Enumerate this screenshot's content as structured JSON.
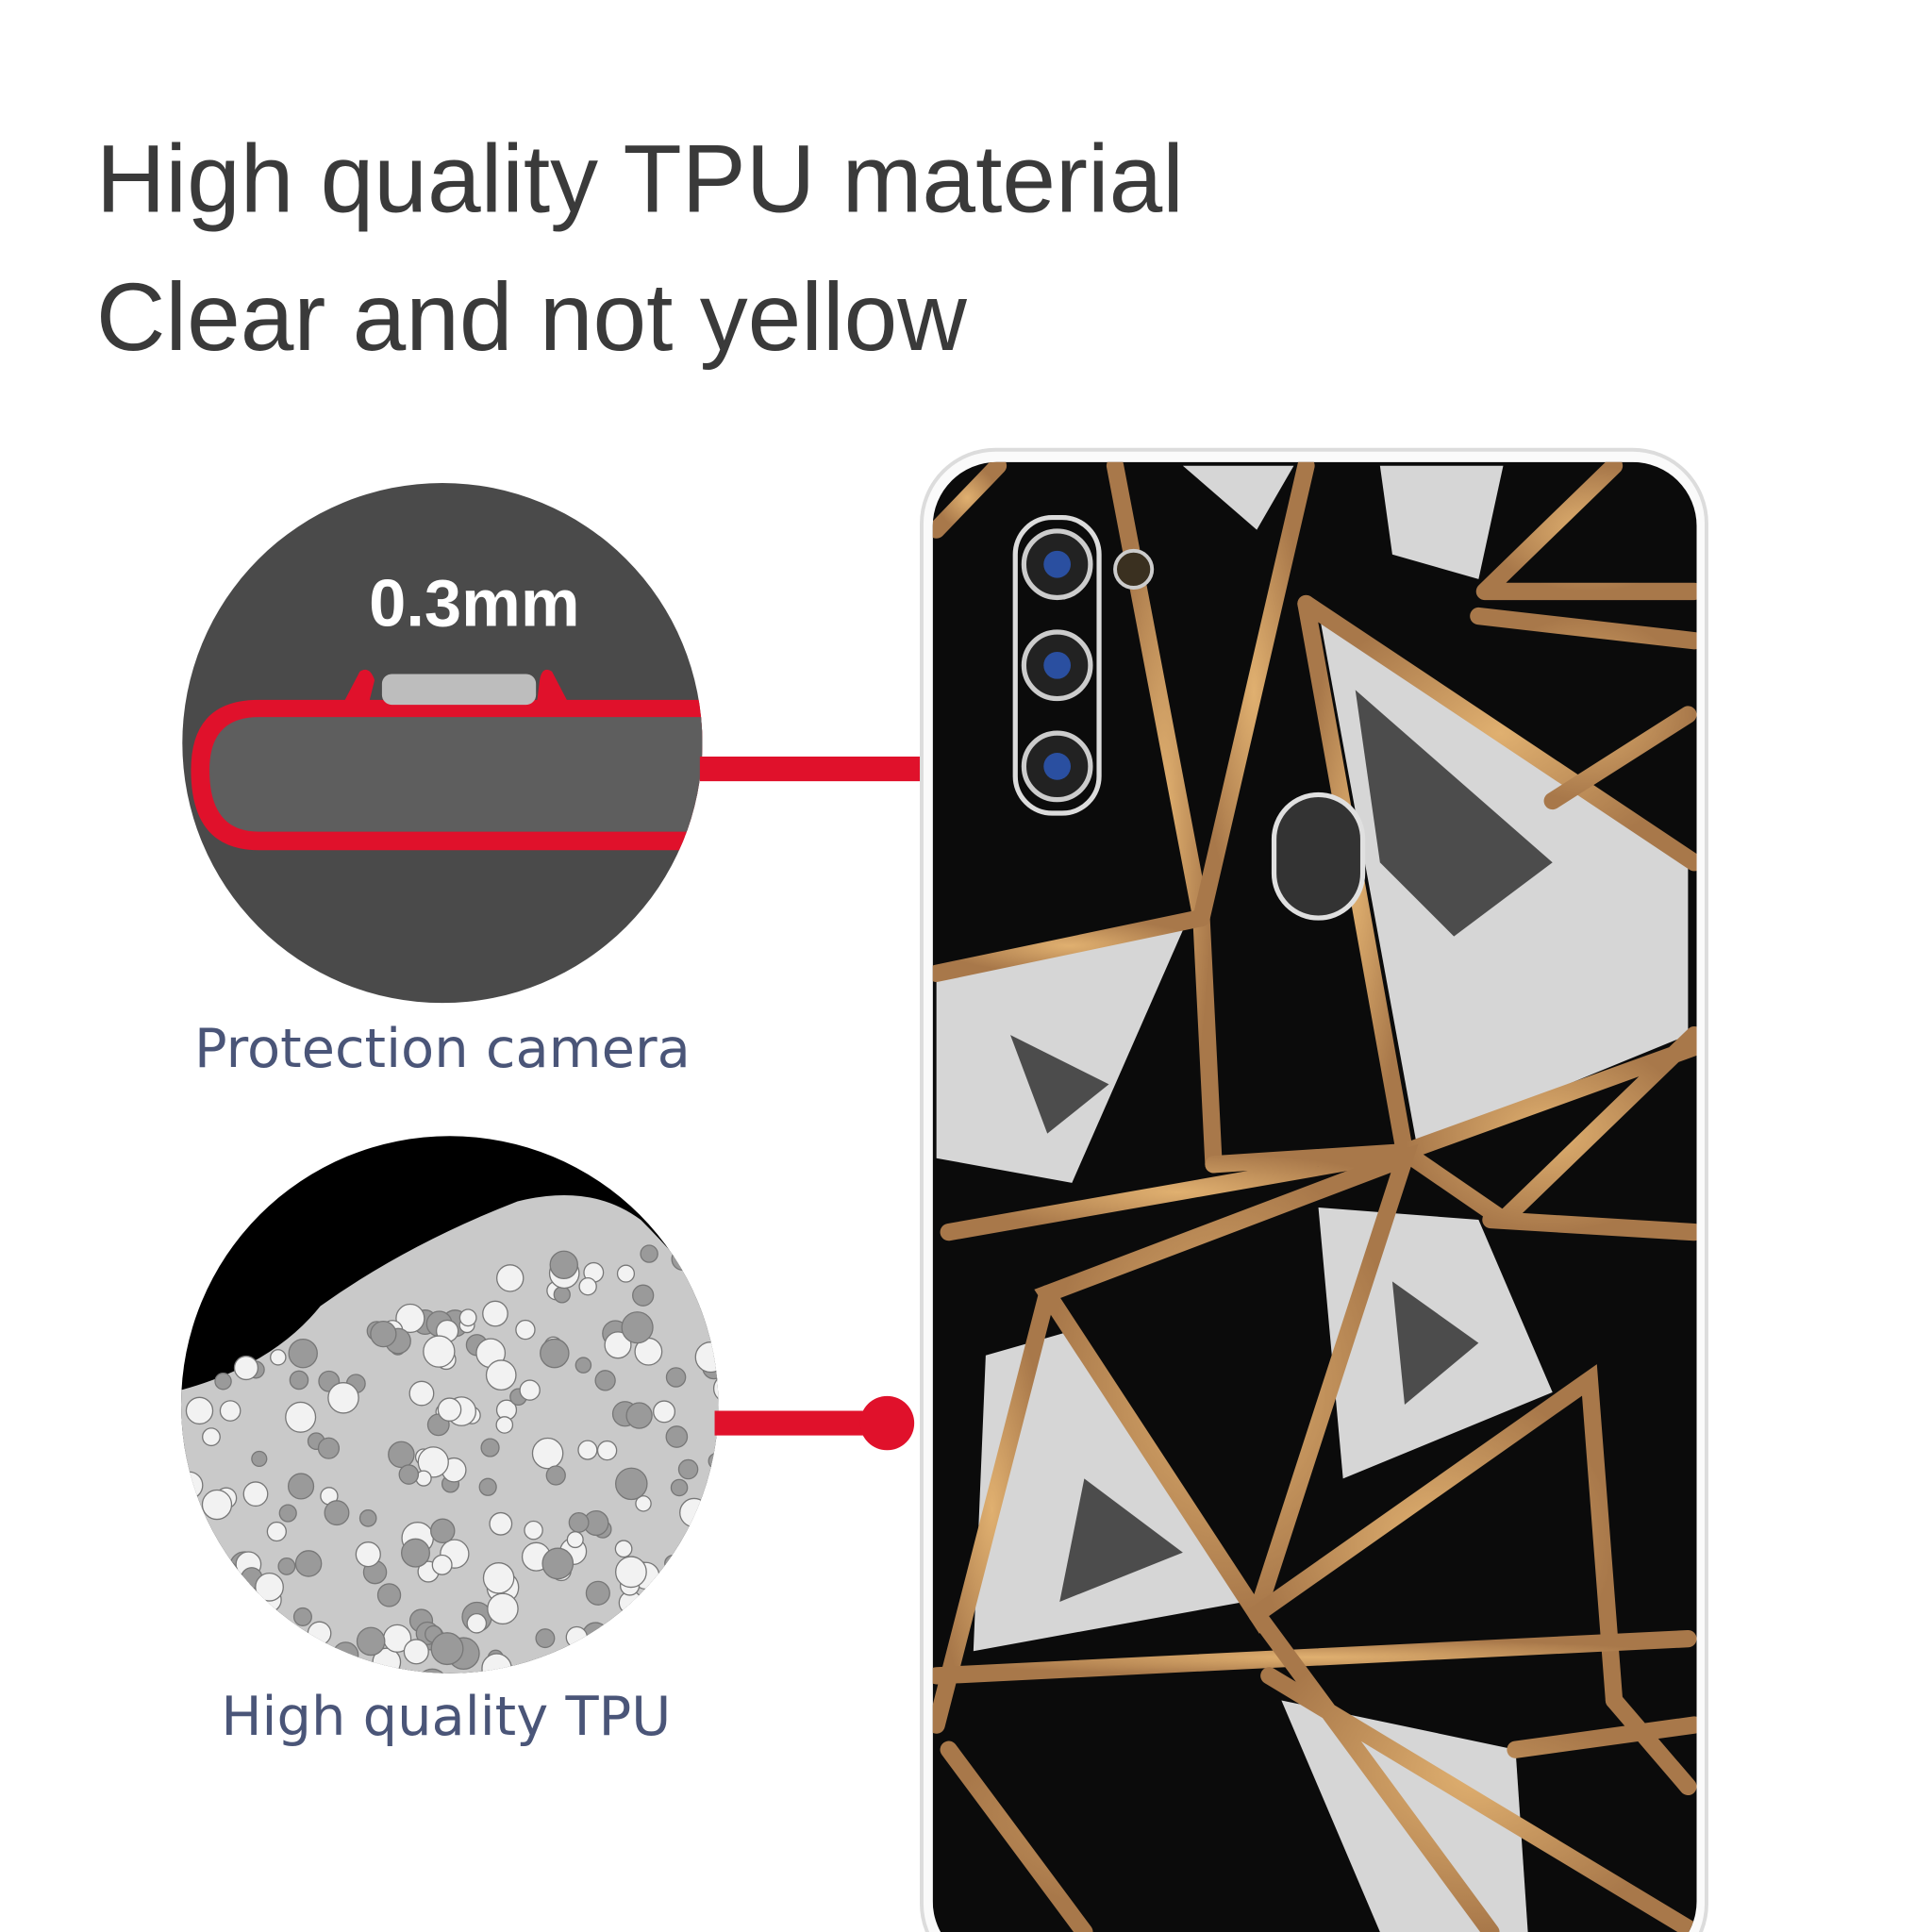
{
  "heading": {
    "line1": "High quality TPU material",
    "line2": "Clear and not yellow"
  },
  "callouts": [
    {
      "label": "Protection camera",
      "thickness_text": "0.3mm",
      "icon": "camera-lip-cross-section-icon"
    },
    {
      "label": "High quality TPU",
      "icon": "tpu-pellets-icon"
    }
  ],
  "colors": {
    "accent_red": "#e0112b",
    "text_dark": "#3a3a3a",
    "label_blue": "#4a5578",
    "gold_line": "#a8784a",
    "case_black": "#0b0b0b"
  }
}
